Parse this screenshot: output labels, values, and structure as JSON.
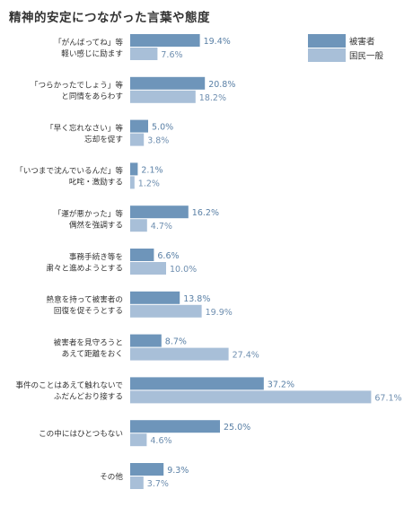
{
  "chart_data": {
    "type": "bar",
    "orientation": "horizontal",
    "title": "精神的安定につながった言葉や態度",
    "unit": "%",
    "xlim": [
      0,
      70
    ],
    "grid": false,
    "legend_placement": "top-right",
    "categories": [
      [
        "「がんばってね」等",
        "軽い感じに励ます"
      ],
      [
        "「つらかったでしょう」等",
        "と同情をあらわす"
      ],
      [
        "「早く忘れなさい」等",
        "忘却を促す"
      ],
      [
        "「いつまで沈んでいるんだ」等",
        "叱咤・激励する"
      ],
      [
        "「運が悪かった」等",
        "偶然を強調する"
      ],
      [
        "事務手続き等を",
        "粛々と進めようとする"
      ],
      [
        "熱意を持って被害者の",
        "回復を促そうとする"
      ],
      [
        "被害者を見守ろうと",
        "あえて距離をおく"
      ],
      [
        "事件のことはあえて触れないで",
        "ふだんどおり接する"
      ],
      [
        "この中にはひとつもない"
      ],
      [
        "その他"
      ]
    ],
    "series": [
      {
        "name": "被害者",
        "color": "#6e95ba",
        "label_color": "#5a80a6",
        "values": [
          19.4,
          20.8,
          5.0,
          2.1,
          16.2,
          6.6,
          13.8,
          8.7,
          37.2,
          25.0,
          9.3
        ],
        "labels": [
          "19.4%",
          "20.8%",
          "5.0%",
          "2.1%",
          "16.2%",
          "6.6%",
          "13.8%",
          "8.7%",
          "37.2%",
          "25.0%",
          "9.3%"
        ]
      },
      {
        "name": "国民一般",
        "color": "#a8bfd8",
        "label_color": "#6f8fb0",
        "values": [
          7.6,
          18.2,
          3.8,
          1.2,
          4.7,
          10.0,
          19.9,
          27.4,
          67.1,
          4.6,
          3.7
        ],
        "labels": [
          "7.6%",
          "18.2%",
          "3.8%",
          "1.2%",
          "4.7%",
          "10.0%",
          "19.9%",
          "27.4%",
          "67.1%",
          "4.6%",
          "3.7%"
        ]
      }
    ]
  }
}
